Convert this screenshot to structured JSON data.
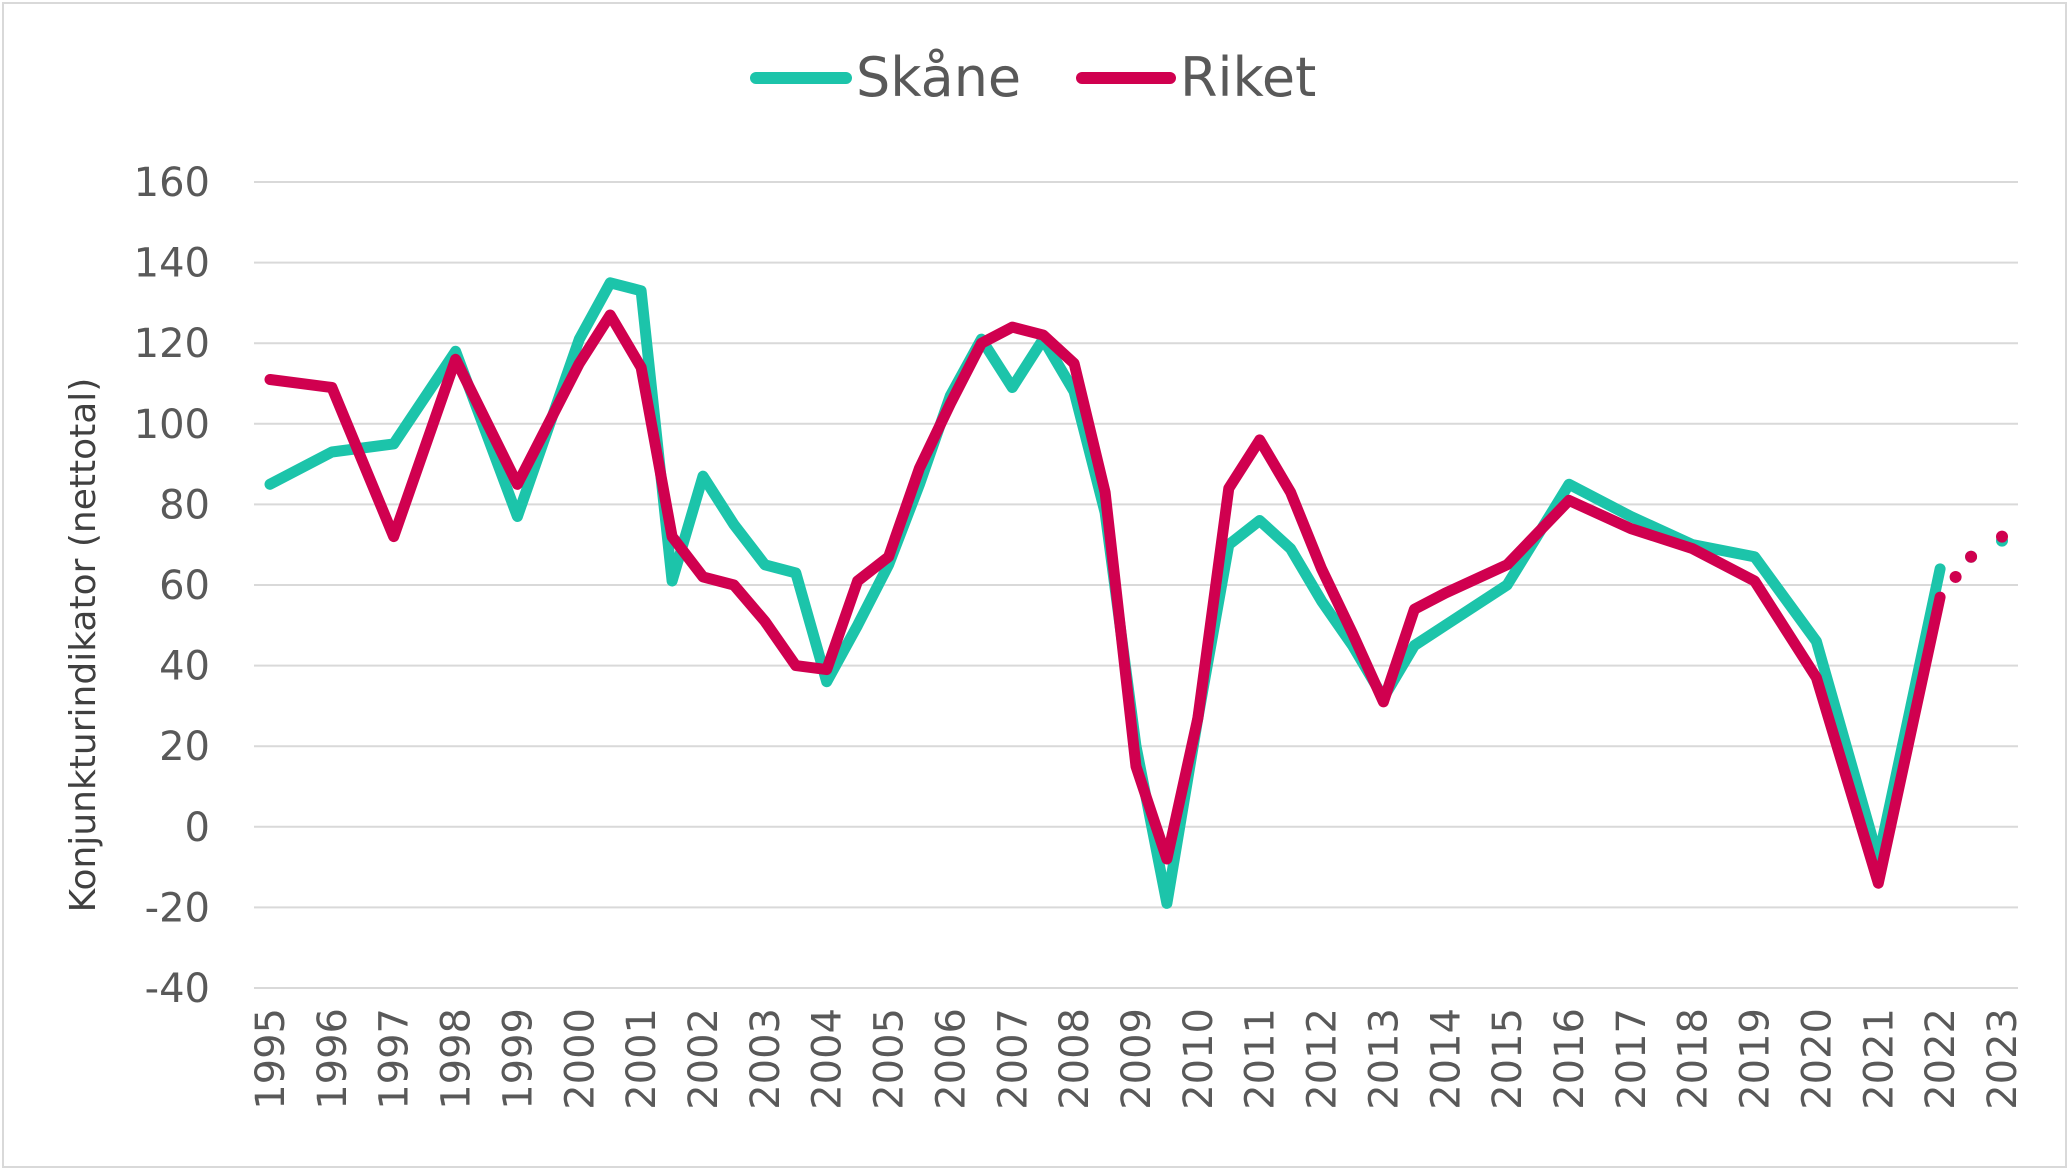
{
  "chart_data": {
    "type": "line",
    "ylabel": "Konjunkturindikator (nettotal)",
    "ylim": [
      -40,
      160
    ],
    "yticks": [
      160,
      140,
      120,
      100,
      80,
      60,
      40,
      20,
      0,
      -20,
      -40
    ],
    "ytick_labels": [
      "160",
      "140",
      "120",
      "100",
      "80",
      "60",
      "40",
      "20",
      "0",
      "-20",
      "-40"
    ],
    "x_labels": [
      "1995",
      "1996",
      "1997",
      "1998",
      "1999",
      "2000",
      "2001",
      "2002",
      "2003",
      "2004",
      "2005",
      "2006",
      "2007",
      "2008",
      "2009",
      "2010",
      "2011",
      "2012",
      "2013",
      "2014",
      "2015",
      "2016",
      "2017",
      "2018",
      "2019",
      "2020",
      "2021",
      "2022",
      "2023"
    ],
    "grid": true,
    "legend_position": "top-center",
    "series": [
      {
        "name": "Skåne",
        "color": "#1cc4aa",
        "points": [
          [
            1995.0,
            85
          ],
          [
            1996.0,
            93
          ],
          [
            1997.0,
            95
          ],
          [
            1998.0,
            118
          ],
          [
            1999.0,
            77
          ],
          [
            2000.0,
            121
          ],
          [
            2000.5,
            135
          ],
          [
            2001.0,
            133
          ],
          [
            2001.5,
            61
          ],
          [
            2002.0,
            87
          ],
          [
            2002.5,
            75
          ],
          [
            2003.0,
            65
          ],
          [
            2003.5,
            63
          ],
          [
            2004.0,
            36
          ],
          [
            2004.5,
            50
          ],
          [
            2005.0,
            65
          ],
          [
            2005.5,
            85
          ],
          [
            2006.0,
            107
          ],
          [
            2006.5,
            121
          ],
          [
            2007.0,
            109
          ],
          [
            2007.5,
            121
          ],
          [
            2008.0,
            108
          ],
          [
            2008.5,
            78
          ],
          [
            2009.0,
            20
          ],
          [
            2009.5,
            -19
          ],
          [
            2010.0,
            27
          ],
          [
            2010.5,
            70
          ],
          [
            2011.0,
            76
          ],
          [
            2011.5,
            69
          ],
          [
            2012.0,
            56
          ],
          [
            2012.5,
            45
          ],
          [
            2013.0,
            32
          ],
          [
            2013.5,
            45
          ],
          [
            2014.0,
            50
          ],
          [
            2015.0,
            60
          ],
          [
            2016.0,
            85
          ],
          [
            2017.0,
            77
          ],
          [
            2018.0,
            70
          ],
          [
            2019.0,
            67
          ],
          [
            2020.0,
            46
          ],
          [
            2021.0,
            -8
          ],
          [
            2022.0,
            64
          ]
        ],
        "dotted_points": [
          [
            2022.5,
            67
          ],
          [
            2023.0,
            71
          ]
        ]
      },
      {
        "name": "Riket",
        "color": "#d0004f",
        "points": [
          [
            1995.0,
            111
          ],
          [
            1996.0,
            109
          ],
          [
            1997.0,
            72
          ],
          [
            1998.0,
            116
          ],
          [
            1999.0,
            85
          ],
          [
            2000.0,
            115
          ],
          [
            2000.5,
            127
          ],
          [
            2001.0,
            114
          ],
          [
            2001.5,
            72
          ],
          [
            2002.0,
            62
          ],
          [
            2002.5,
            60
          ],
          [
            2003.0,
            51
          ],
          [
            2003.5,
            40
          ],
          [
            2004.0,
            39
          ],
          [
            2004.5,
            61
          ],
          [
            2005.0,
            67
          ],
          [
            2005.5,
            89
          ],
          [
            2006.0,
            105
          ],
          [
            2006.5,
            120
          ],
          [
            2007.0,
            124
          ],
          [
            2007.5,
            122
          ],
          [
            2008.0,
            115
          ],
          [
            2008.5,
            83
          ],
          [
            2009.0,
            15
          ],
          [
            2009.5,
            -8
          ],
          [
            2010.0,
            27
          ],
          [
            2010.5,
            84
          ],
          [
            2011.0,
            96
          ],
          [
            2011.5,
            83
          ],
          [
            2012.0,
            64
          ],
          [
            2012.5,
            48
          ],
          [
            2013.0,
            31
          ],
          [
            2013.5,
            54
          ],
          [
            2014.0,
            58
          ],
          [
            2015.0,
            65
          ],
          [
            2016.0,
            81
          ],
          [
            2017.0,
            74
          ],
          [
            2018.0,
            69
          ],
          [
            2019.0,
            61
          ],
          [
            2020.0,
            37
          ],
          [
            2021.0,
            -14
          ],
          [
            2022.0,
            57
          ]
        ],
        "dotted_points": [
          [
            2022.25,
            62
          ],
          [
            2022.5,
            67
          ],
          [
            2023.0,
            72
          ]
        ]
      }
    ]
  }
}
